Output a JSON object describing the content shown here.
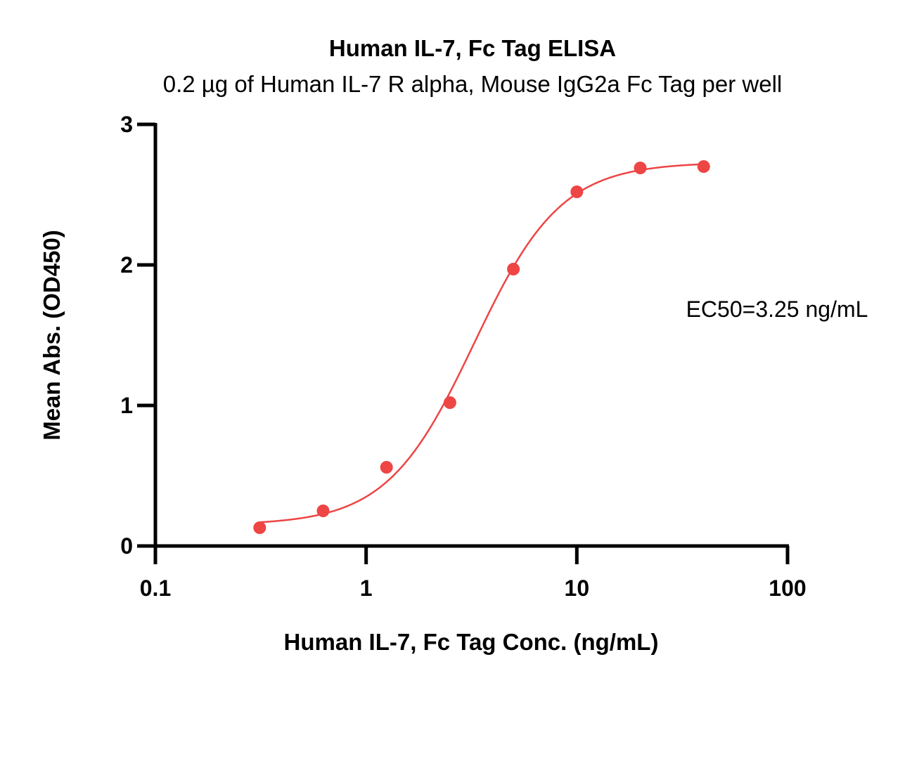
{
  "chart_data": {
    "type": "scatter",
    "title": "Human IL-7, Fc Tag ELISA",
    "subtitle": "0.2 µg of Human IL-7 R alpha, Mouse IgG2a Fc Tag per well",
    "xlabel": "Human IL-7, Fc Tag Conc. (ng/mL)",
    "ylabel": "Mean Abs. (OD450)",
    "x_scale": "log",
    "xlim": [
      0.1,
      100
    ],
    "ylim": [
      0,
      3
    ],
    "x_ticks": [
      {
        "value": 0.1,
        "label": "0.1"
      },
      {
        "value": 1,
        "label": "1"
      },
      {
        "value": 10,
        "label": "10"
      },
      {
        "value": 100,
        "label": "100"
      }
    ],
    "y_ticks": [
      {
        "value": 0,
        "label": "0"
      },
      {
        "value": 1,
        "label": "1"
      },
      {
        "value": 2,
        "label": "2"
      },
      {
        "value": 3,
        "label": "3"
      }
    ],
    "grid": false,
    "color": "#ee4545",
    "series": [
      {
        "x": [
          0.3125,
          0.625,
          1.25,
          2.5,
          5,
          10,
          20,
          40
        ],
        "y": [
          0.13,
          0.25,
          0.56,
          1.02,
          1.97,
          2.52,
          2.69,
          2.7
        ]
      }
    ],
    "fit": {
      "model": "4PL",
      "bottom": 0.15,
      "top": 2.73,
      "ec50": 3.25,
      "hill": 2.1
    },
    "annotations": [
      {
        "text": "EC50=3.25 ng/mL"
      }
    ]
  }
}
